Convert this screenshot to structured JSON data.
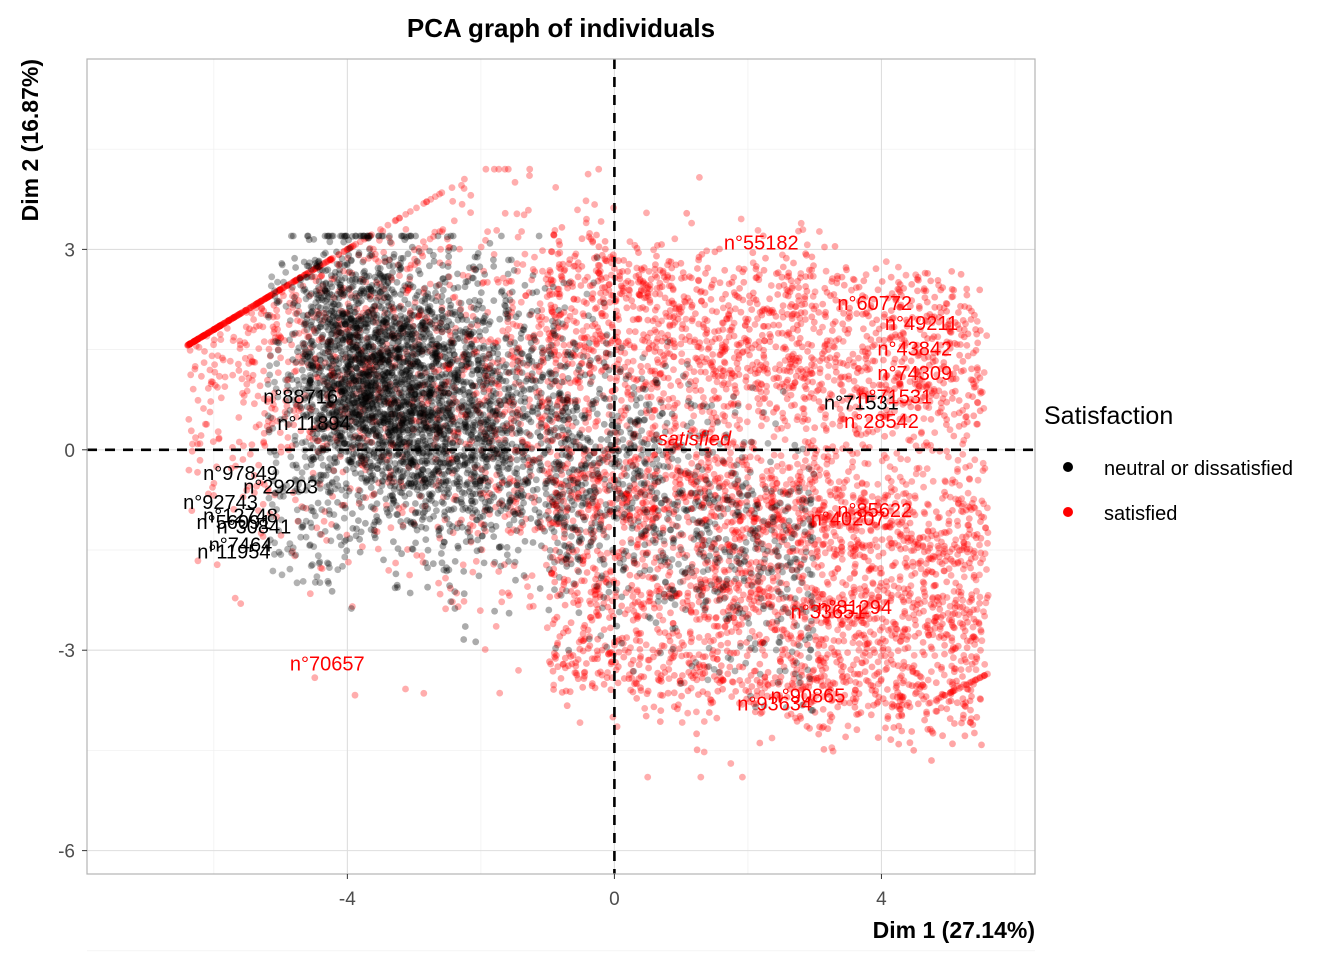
{
  "chart_data": {
    "type": "scatter",
    "title": "PCA graph of individuals",
    "xlabel": "Dim 1 (27.14%)",
    "ylabel": "Dim 2 (16.87%)",
    "xlim": [
      -7.9,
      6.3
    ],
    "ylim": [
      -6.35,
      5.85
    ],
    "x_ticks": [
      -4,
      0,
      4
    ],
    "y_ticks": [
      3,
      0,
      -3,
      -6
    ],
    "x_tick_labels": [
      "-4",
      "0",
      "4"
    ],
    "y_tick_labels": [
      "3",
      "0",
      "-3",
      "-6"
    ],
    "grid": true,
    "reference_lines": {
      "x": 0,
      "y": 0
    },
    "legend": {
      "title": "Satisfaction",
      "placement": "right",
      "entries": [
        {
          "label": "neutral or dissatisfied",
          "color": "#000000"
        },
        {
          "label": "satisfied",
          "color": "#FF0000"
        }
      ]
    },
    "series": [
      {
        "name": "neutral or dissatisfied",
        "color": "#000000",
        "opacity": 0.3
      },
      {
        "name": "satisfied",
        "color": "#FF0000",
        "opacity": 0.3
      }
    ],
    "category_centroid": {
      "label": "satisfied",
      "x": 1.2,
      "y": 0.17,
      "color": "#FF0000"
    },
    "point_labels": [
      {
        "text": "n°88716",
        "x": -4.7,
        "y": 0.8,
        "color": "#000000"
      },
      {
        "text": "n°11894",
        "x": -4.5,
        "y": 0.4,
        "color": "#000000"
      },
      {
        "text": "n°97849",
        "x": -5.6,
        "y": -0.35,
        "color": "#000000"
      },
      {
        "text": "n°29203",
        "x": -5.0,
        "y": -0.55,
        "color": "#000000"
      },
      {
        "text": "n°92743",
        "x": -5.9,
        "y": -0.78,
        "color": "#000000"
      },
      {
        "text": "n°12748",
        "x": -5.6,
        "y": -0.98,
        "color": "#000000"
      },
      {
        "text": "n°56091",
        "x": -5.7,
        "y": -1.08,
        "color": "#000000"
      },
      {
        "text": "n°30841",
        "x": -5.4,
        "y": -1.15,
        "color": "#000000"
      },
      {
        "text": "n°7464",
        "x": -5.6,
        "y": -1.42,
        "color": "#000000"
      },
      {
        "text": "n°11954",
        "x": -5.7,
        "y": -1.52,
        "color": "#000000"
      },
      {
        "text": "n°71531",
        "x": 3.7,
        "y": 0.71,
        "color": "#000000"
      },
      {
        "text": "n°70657",
        "x": -4.3,
        "y": -3.2,
        "color": "#FF0000"
      },
      {
        "text": "n°28542",
        "x": 4.0,
        "y": 0.43,
        "color": "#FF0000"
      },
      {
        "text": "n°43842",
        "x": 4.5,
        "y": 1.52,
        "color": "#FF0000"
      },
      {
        "text": "n°74309",
        "x": 4.5,
        "y": 1.15,
        "color": "#FF0000"
      },
      {
        "text": "n°71531",
        "x": 4.2,
        "y": 0.8,
        "color": "#FF0000"
      },
      {
        "text": "n°55182",
        "x": 2.2,
        "y": 3.1,
        "color": "#FF0000"
      },
      {
        "text": "n°60772",
        "x": 3.9,
        "y": 2.2,
        "color": "#FF0000"
      },
      {
        "text": "n°49211",
        "x": 4.6,
        "y": 1.9,
        "color": "#FF0000"
      },
      {
        "text": "n°85622",
        "x": 3.9,
        "y": -0.9,
        "color": "#FF0000"
      },
      {
        "text": "n°40207",
        "x": 3.5,
        "y": -1.03,
        "color": "#FF0000"
      },
      {
        "text": "n°81294",
        "x": 3.6,
        "y": -2.35,
        "color": "#FF0000"
      },
      {
        "text": "n°33651",
        "x": 3.2,
        "y": -2.42,
        "color": "#FF0000"
      },
      {
        "text": "n°90865",
        "x": 2.9,
        "y": -3.68,
        "color": "#FF0000"
      },
      {
        "text": "n°93634",
        "x": 2.4,
        "y": -3.8,
        "color": "#FF0000"
      }
    ]
  }
}
